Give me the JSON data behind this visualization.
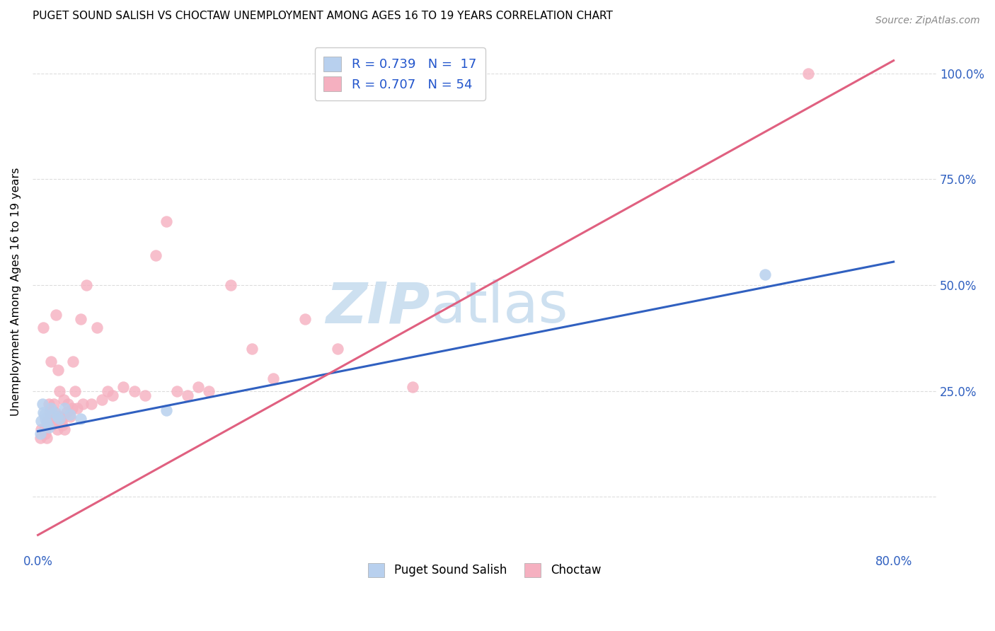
{
  "title": "PUGET SOUND SALISH VS CHOCTAW UNEMPLOYMENT AMONG AGES 16 TO 19 YEARS CORRELATION CHART",
  "source": "Source: ZipAtlas.com",
  "ylabel_label": "Unemployment Among Ages 16 to 19 years",
  "xlim": [
    -0.005,
    0.84
  ],
  "ylim": [
    -0.13,
    1.1
  ],
  "puget_sound_salish": {
    "color": "#b8d0ee",
    "line_color": "#3060c0",
    "R": 0.739,
    "N": 17,
    "x": [
      0.002,
      0.003,
      0.004,
      0.005,
      0.006,
      0.007,
      0.008,
      0.01,
      0.012,
      0.015,
      0.018,
      0.02,
      0.025,
      0.03,
      0.04,
      0.12,
      0.68
    ],
    "y": [
      0.15,
      0.18,
      0.22,
      0.2,
      0.195,
      0.185,
      0.175,
      0.165,
      0.21,
      0.2,
      0.19,
      0.185,
      0.21,
      0.195,
      0.185,
      0.205,
      0.525
    ]
  },
  "choctaw": {
    "color": "#f5b0c0",
    "line_color": "#e06080",
    "R": 0.707,
    "N": 54,
    "x": [
      0.002,
      0.003,
      0.005,
      0.006,
      0.007,
      0.008,
      0.009,
      0.01,
      0.011,
      0.012,
      0.013,
      0.014,
      0.015,
      0.016,
      0.017,
      0.018,
      0.019,
      0.02,
      0.021,
      0.022,
      0.023,
      0.024,
      0.025,
      0.027,
      0.028,
      0.03,
      0.032,
      0.033,
      0.035,
      0.037,
      0.04,
      0.042,
      0.045,
      0.05,
      0.055,
      0.06,
      0.065,
      0.07,
      0.08,
      0.09,
      0.1,
      0.11,
      0.12,
      0.13,
      0.14,
      0.15,
      0.16,
      0.18,
      0.2,
      0.22,
      0.25,
      0.28,
      0.35,
      0.72
    ],
    "y": [
      0.14,
      0.16,
      0.4,
      0.16,
      0.15,
      0.14,
      0.18,
      0.22,
      0.2,
      0.32,
      0.17,
      0.18,
      0.22,
      0.2,
      0.43,
      0.16,
      0.3,
      0.25,
      0.19,
      0.18,
      0.17,
      0.23,
      0.16,
      0.2,
      0.22,
      0.19,
      0.21,
      0.32,
      0.25,
      0.21,
      0.42,
      0.22,
      0.5,
      0.22,
      0.4,
      0.23,
      0.25,
      0.24,
      0.26,
      0.25,
      0.24,
      0.57,
      0.65,
      0.25,
      0.24,
      0.26,
      0.25,
      0.5,
      0.35,
      0.28,
      0.42,
      0.35,
      0.26,
      1.0
    ]
  },
  "blue_line_x0": 0.0,
  "blue_line_y0": 0.155,
  "blue_line_x1": 0.8,
  "blue_line_y1": 0.555,
  "pink_line_x0": 0.0,
  "pink_line_y0": -0.09,
  "pink_line_x1": 0.8,
  "pink_line_y1": 1.03,
  "background_color": "#ffffff",
  "grid_color": "#dddddd",
  "watermark_zip": "ZIP",
  "watermark_atlas": "atlas",
  "watermark_color": "#cde0f0",
  "title_fontsize": 11,
  "tick_label_color": "#3060c0",
  "legend_fontsize": 13
}
